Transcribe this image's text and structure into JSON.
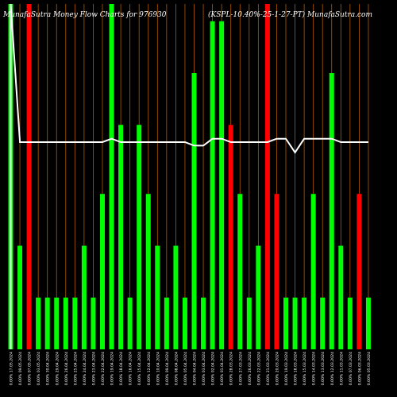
{
  "header": {
    "title_left": "MunafaSutra  Money Flow  Charts for 976930",
    "title_right": "(KSPL-10.40%-25-1-27-PT) MunafaSutra.com"
  },
  "colors": {
    "background": "#000000",
    "up": "#00ff00",
    "down": "#ff0000",
    "grid": "#b35900",
    "line": "#ffffff",
    "label": "#ffffff"
  },
  "chart_data": {
    "type": "bar",
    "ylim": [
      0,
      100
    ],
    "categories": [
      "0.00% 17.05.2024",
      "0.00% 09.05.2024",
      "0.00% 07.05.2024",
      "0.00% 03.05.2024",
      "0.00% 30.04.2024",
      "0.00% 29.04.2024",
      "0.00% 26.04.2024",
      "0.00% 25.04.2024",
      "0.00% 24.04.2024",
      "0.00% 23.04.2024",
      "0.00% 22.04.2024",
      "0.00% 19.04.2024",
      "0.00% 18.04.2024",
      "0.00% 16.04.2024",
      "0.00% 15.04.2024",
      "0.00% 12.04.2024",
      "0.00% 10.04.2024",
      "0.00% 09.04.2024",
      "0.00% 08.04.2024",
      "0.00% 05.04.2024",
      "0.00% 04.04.2024",
      "0.00% 03.04.2024",
      "0.00% 02.04.2024",
      "0.00% 01.04.2024",
      "0.00% 28.03.2024",
      "0.00% 27.03.2024",
      "0.00% 26.03.2024",
      "0.00% 22.03.2024",
      "0.00% 21.03.2024",
      "0.00% 20.03.2024",
      "0.00% 19.03.2024",
      "0.00% 18.03.2024",
      "0.00% 15.03.2024",
      "0.00% 14.03.2024",
      "0.00% 13.03.2024",
      "0.00% 12.03.2024",
      "0.00% 11.03.2024",
      "0.00% 07.03.2024",
      "0.00% 06.03.2024",
      "0.00% 05.03.2024"
    ],
    "values": [
      100,
      30,
      100,
      15,
      15,
      15,
      15,
      15,
      30,
      15,
      45,
      100,
      65,
      15,
      65,
      45,
      30,
      15,
      30,
      15,
      80,
      15,
      95,
      95,
      65,
      45,
      15,
      30,
      100,
      45,
      15,
      15,
      15,
      45,
      15,
      80,
      30,
      15,
      45,
      15
    ],
    "directions": [
      "up",
      "up",
      "down",
      "up",
      "up",
      "up",
      "up",
      "up",
      "up",
      "up",
      "up",
      "up",
      "up",
      "up",
      "up",
      "up",
      "up",
      "up",
      "up",
      "up",
      "up",
      "up",
      "up",
      "up",
      "down",
      "up",
      "up",
      "up",
      "down",
      "down",
      "up",
      "up",
      "up",
      "up",
      "up",
      "up",
      "up",
      "up",
      "down",
      "up"
    ],
    "line_values": [
      100,
      60,
      60,
      60,
      60,
      60,
      60,
      60,
      60,
      60,
      60,
      61,
      60,
      60,
      60,
      60,
      60,
      60,
      60,
      60,
      59,
      59,
      61,
      61,
      60,
      60,
      60,
      60,
      60,
      61,
      61,
      57,
      61,
      61,
      61,
      61,
      60,
      60,
      60,
      60
    ],
    "grid": true
  }
}
